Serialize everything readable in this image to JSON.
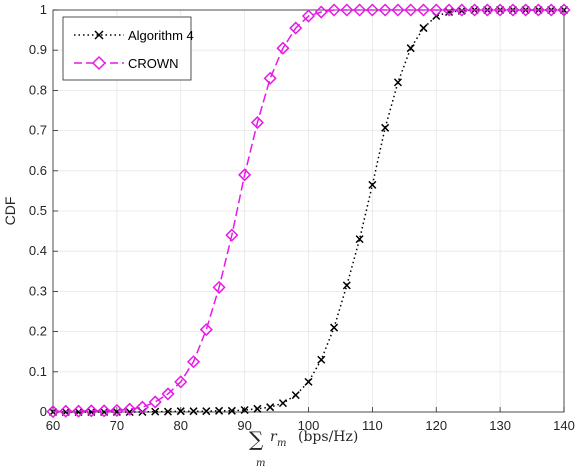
{
  "chart_data": {
    "type": "line",
    "title": "",
    "xlabel_sum": "∑",
    "xlabel_sub": "m",
    "xlabel_var": "r",
    "xlabel_var_sub": "m",
    "xlabel_unit": "(bps/Hz)",
    "ylabel": "CDF",
    "xlim": [
      60,
      140
    ],
    "ylim": [
      0,
      1
    ],
    "xticks": [
      "60",
      "70",
      "80",
      "90",
      "100",
      "110",
      "120",
      "130",
      "140"
    ],
    "yticks": [
      "0",
      "0.1",
      "0.2",
      "0.3",
      "0.4",
      "0.5",
      "0.6",
      "0.7",
      "0.8",
      "0.9",
      "1"
    ],
    "grid": true,
    "legend_position": "top-left",
    "series": [
      {
        "name": "Algorithm 4",
        "color": "#000000",
        "line_style": "dotted",
        "marker": "x",
        "x": [
          60,
          62,
          64,
          66,
          68,
          70,
          72,
          74,
          76,
          78,
          80,
          82,
          84,
          86,
          88,
          90,
          92,
          94,
          96,
          98,
          100,
          102,
          104,
          106,
          108,
          110,
          112,
          114,
          116,
          118,
          120,
          122,
          124,
          126,
          128,
          130,
          132,
          134,
          136,
          138,
          140
        ],
        "y": [
          0,
          0,
          0,
          0,
          0,
          0,
          0,
          0,
          0.001,
          0.001,
          0.002,
          0.002,
          0.002,
          0.003,
          0.003,
          0.005,
          0.008,
          0.012,
          0.022,
          0.042,
          0.075,
          0.13,
          0.21,
          0.315,
          0.43,
          0.565,
          0.707,
          0.82,
          0.905,
          0.955,
          0.985,
          0.995,
          0.998,
          1,
          1,
          1,
          1,
          1,
          1,
          1,
          1
        ]
      },
      {
        "name": "CROWN",
        "color": "#e619e6",
        "line_style": "dashed",
        "marker": "diamond",
        "x": [
          60,
          62,
          64,
          66,
          68,
          70,
          72,
          74,
          76,
          78,
          80,
          82,
          84,
          86,
          88,
          90,
          92,
          94,
          96,
          98,
          100,
          102,
          104,
          106,
          108,
          110,
          112,
          114,
          116,
          118,
          120,
          122,
          124,
          126,
          128,
          130,
          132,
          134,
          136,
          138,
          140
        ],
        "y": [
          0.001,
          0.002,
          0.002,
          0.003,
          0.003,
          0.004,
          0.007,
          0.012,
          0.025,
          0.045,
          0.075,
          0.125,
          0.205,
          0.31,
          0.44,
          0.59,
          0.72,
          0.83,
          0.905,
          0.955,
          0.985,
          0.995,
          1,
          1,
          1,
          1,
          1,
          1,
          1,
          1,
          1,
          1,
          1,
          1,
          1,
          1,
          1,
          1,
          1,
          1,
          1
        ]
      }
    ]
  }
}
